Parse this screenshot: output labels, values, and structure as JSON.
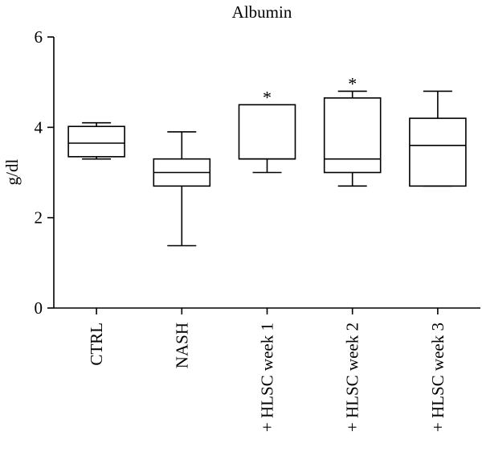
{
  "chart_data": {
    "type": "box",
    "title": "Albumin",
    "ylabel": "g/dl",
    "ylim": [
      0,
      6
    ],
    "yticks": [
      0,
      2,
      4,
      6
    ],
    "grid": false,
    "categories": [
      "CTRL",
      "NASH",
      "+ HLSC week 1",
      "+ HLSC week 2",
      "+ HLSC week 3"
    ],
    "boxes": [
      {
        "category": "CTRL",
        "min": 3.3,
        "q1": 3.35,
        "median": 3.65,
        "q3": 4.02,
        "max": 4.1,
        "annotation": ""
      },
      {
        "category": "NASH",
        "min": 1.38,
        "q1": 2.7,
        "median": 3.0,
        "q3": 3.3,
        "max": 3.9,
        "annotation": ""
      },
      {
        "category": "+ HLSC week 1",
        "min": 3.0,
        "q1": 3.3,
        "median": 3.3,
        "q3": 4.5,
        "max": 4.5,
        "annotation": "*"
      },
      {
        "category": "+ HLSC week 2",
        "min": 2.7,
        "q1": 3.0,
        "median": 3.3,
        "q3": 4.65,
        "max": 4.8,
        "annotation": "*"
      },
      {
        "category": "+ HLSC week 3",
        "min": 2.7,
        "q1": 2.7,
        "median": 3.6,
        "q3": 4.2,
        "max": 4.8,
        "annotation": ""
      }
    ]
  }
}
